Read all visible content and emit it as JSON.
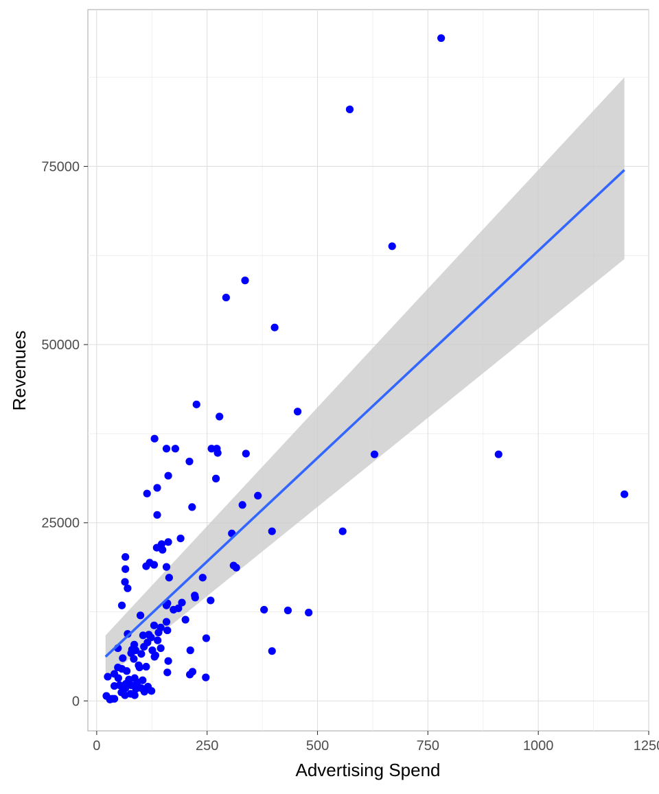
{
  "chart_data": {
    "type": "scatter",
    "xlabel": "Advertising Spend",
    "ylabel": "Revenues",
    "xlim": [
      -20,
      1250
    ],
    "ylim": [
      -4200,
      97000
    ],
    "x_ticks": [
      0,
      250,
      500,
      750,
      1000,
      1250
    ],
    "x_tick_labels": [
      "0",
      "250",
      "500",
      "750",
      "1000",
      "1250"
    ],
    "y_ticks": [
      0,
      25000,
      50000,
      75000
    ],
    "y_tick_labels": [
      "0",
      "25000",
      "50000",
      "75000"
    ],
    "grid": true,
    "legend": "none",
    "point_color": "#0000ff",
    "fit_line": {
      "method": "linear",
      "color": "#3366ff",
      "band_color": "#cccccc",
      "x": [
        20,
        1195
      ],
      "y": [
        6200,
        74500
      ],
      "band_lower": [
        3200,
        62000
      ],
      "band_upper": [
        9200,
        87500
      ]
    },
    "points": [
      [
        780,
        93000
      ],
      [
        573,
        83000
      ],
      [
        669,
        63800
      ],
      [
        336,
        59000
      ],
      [
        293,
        56600
      ],
      [
        403,
        52400
      ],
      [
        455,
        40600
      ],
      [
        226,
        41600
      ],
      [
        278,
        39900
      ],
      [
        131,
        36800
      ],
      [
        158,
        35400
      ],
      [
        178,
        35400
      ],
      [
        260,
        35400
      ],
      [
        272,
        35400
      ],
      [
        629,
        34600
      ],
      [
        338,
        34700
      ],
      [
        274,
        34800
      ],
      [
        910,
        34600
      ],
      [
        210,
        33600
      ],
      [
        162,
        31600
      ],
      [
        270,
        31200
      ],
      [
        137,
        29900
      ],
      [
        114,
        29100
      ],
      [
        1195,
        29000
      ],
      [
        365,
        28800
      ],
      [
        330,
        27500
      ],
      [
        216,
        27200
      ],
      [
        137,
        26100
      ],
      [
        397,
        23800
      ],
      [
        557,
        23800
      ],
      [
        306,
        23500
      ],
      [
        190,
        22800
      ],
      [
        162,
        22300
      ],
      [
        147,
        22000
      ],
      [
        136,
        21500
      ],
      [
        149,
        21200
      ],
      [
        65,
        20200
      ],
      [
        120,
        19400
      ],
      [
        130,
        19100
      ],
      [
        112,
        18900
      ],
      [
        310,
        19000
      ],
      [
        316,
        18700
      ],
      [
        158,
        18800
      ],
      [
        65,
        18500
      ],
      [
        164,
        17300
      ],
      [
        240,
        17300
      ],
      [
        64,
        16700
      ],
      [
        70,
        15800
      ],
      [
        222,
        14800
      ],
      [
        223,
        14500
      ],
      [
        258,
        14100
      ],
      [
        193,
        13800
      ],
      [
        160,
        13700
      ],
      [
        158,
        13400
      ],
      [
        57,
        13400
      ],
      [
        185,
        13000
      ],
      [
        174,
        12800
      ],
      [
        379,
        12800
      ],
      [
        433,
        12700
      ],
      [
        480,
        12400
      ],
      [
        99,
        12000
      ],
      [
        201,
        11400
      ],
      [
        158,
        11100
      ],
      [
        130,
        10600
      ],
      [
        145,
        10300
      ],
      [
        160,
        9900
      ],
      [
        140,
        9600
      ],
      [
        118,
        9300
      ],
      [
        105,
        9200
      ],
      [
        123,
        8900
      ],
      [
        70,
        9400
      ],
      [
        248,
        8800
      ],
      [
        138,
        8500
      ],
      [
        115,
        8200
      ],
      [
        85,
        7900
      ],
      [
        107,
        7600
      ],
      [
        80,
        7200
      ],
      [
        145,
        7400
      ],
      [
        126,
        7100
      ],
      [
        212,
        7100
      ],
      [
        397,
        7000
      ],
      [
        48,
        7400
      ],
      [
        88,
        7100
      ],
      [
        78,
        6700
      ],
      [
        101,
        6600
      ],
      [
        133,
        6400
      ],
      [
        131,
        6200
      ],
      [
        162,
        5600
      ],
      [
        59,
        6000
      ],
      [
        84,
        5900
      ],
      [
        95,
        5000
      ],
      [
        112,
        4800
      ],
      [
        97,
        4700
      ],
      [
        48,
        4700
      ],
      [
        57,
        4500
      ],
      [
        68,
        4200
      ],
      [
        160,
        4000
      ],
      [
        217,
        4100
      ],
      [
        211,
        3700
      ],
      [
        40,
        3800
      ],
      [
        25,
        3400
      ],
      [
        49,
        3200
      ],
      [
        247,
        3300
      ],
      [
        86,
        3200
      ],
      [
        73,
        3000
      ],
      [
        104,
        2900
      ],
      [
        92,
        2600
      ],
      [
        78,
        2200
      ],
      [
        66,
        2400
      ],
      [
        52,
        2200
      ],
      [
        40,
        2100
      ],
      [
        116,
        2000
      ],
      [
        65,
        1800
      ],
      [
        89,
        1700
      ],
      [
        101,
        1800
      ],
      [
        124,
        1400
      ],
      [
        108,
        1300
      ],
      [
        56,
        1200
      ],
      [
        77,
        1000
      ],
      [
        64,
        800
      ],
      [
        22,
        700
      ],
      [
        86,
        800
      ],
      [
        35,
        300
      ],
      [
        30,
        200
      ],
      [
        40,
        300
      ]
    ]
  }
}
